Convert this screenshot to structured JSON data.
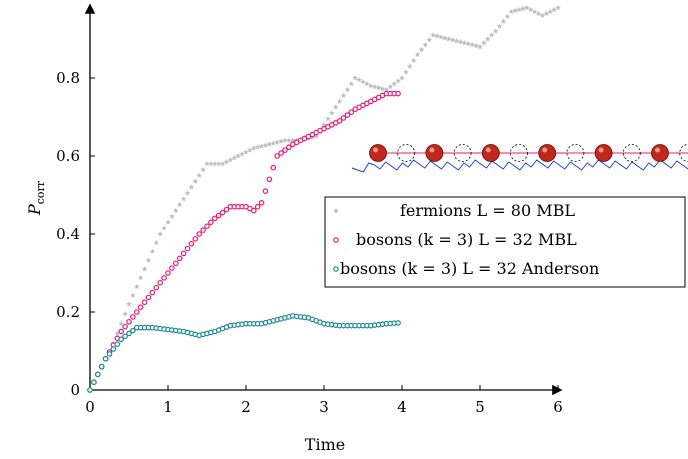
{
  "chart_data": {
    "type": "scatter",
    "xlabel": "Time",
    "ylabel": "P",
    "ylabel_sub": "corr",
    "xlim": [
      0,
      6
    ],
    "ylim": [
      0,
      1
    ],
    "xticks": [
      "0",
      "1",
      "2",
      "3",
      "4",
      "5",
      "6"
    ],
    "yticks": [
      "0",
      "0.2",
      "0.4",
      "0.6",
      "0.8"
    ],
    "grid": false,
    "legend_position": "right",
    "series": [
      {
        "name": "fermions L = 80 MBL",
        "color": "#bdbdbd",
        "marker": "star",
        "x": [
          0,
          0.3,
          0.5,
          0.7,
          0.9,
          1.1,
          1.3,
          1.5,
          1.7,
          1.9,
          2.1,
          2.3,
          2.5,
          2.7,
          2.9,
          3.0,
          3.2,
          3.4,
          3.6,
          3.8,
          4.0,
          4.2,
          4.4,
          4.6,
          4.8,
          5.0,
          5.2,
          5.4,
          5.6,
          5.8,
          6.0
        ],
        "y": [
          0,
          0.12,
          0.22,
          0.31,
          0.4,
          0.46,
          0.52,
          0.58,
          0.58,
          0.6,
          0.62,
          0.63,
          0.64,
          0.64,
          0.65,
          0.68,
          0.74,
          0.8,
          0.78,
          0.77,
          0.8,
          0.86,
          0.91,
          0.9,
          0.89,
          0.88,
          0.92,
          0.97,
          0.98,
          0.96,
          0.98
        ]
      },
      {
        "name": "bosons (k = 3) L = 32 MBL",
        "color": "#e8197a",
        "marker": "circle",
        "x": [
          0,
          0.2,
          0.4,
          0.6,
          0.8,
          1.0,
          1.2,
          1.4,
          1.6,
          1.8,
          2.0,
          2.1,
          2.2,
          2.3,
          2.4,
          2.6,
          2.8,
          3.0,
          3.2,
          3.4,
          3.6,
          3.8,
          3.95
        ],
        "y": [
          0,
          0.08,
          0.15,
          0.2,
          0.25,
          0.3,
          0.35,
          0.4,
          0.44,
          0.47,
          0.47,
          0.46,
          0.48,
          0.54,
          0.6,
          0.63,
          0.65,
          0.67,
          0.69,
          0.72,
          0.74,
          0.76,
          0.76
        ]
      },
      {
        "name": "bosons (k = 3) L = 32 Anderson",
        "color": "#1a8a93",
        "marker": "circle",
        "x": [
          0,
          0.2,
          0.4,
          0.6,
          0.8,
          1.0,
          1.2,
          1.4,
          1.6,
          1.8,
          2.0,
          2.2,
          2.4,
          2.6,
          2.8,
          3.0,
          3.2,
          3.4,
          3.6,
          3.8,
          3.95
        ],
        "y": [
          0,
          0.08,
          0.13,
          0.16,
          0.16,
          0.155,
          0.15,
          0.14,
          0.15,
          0.165,
          0.17,
          0.17,
          0.18,
          0.19,
          0.185,
          0.17,
          0.165,
          0.165,
          0.165,
          0.17,
          0.172
        ]
      }
    ],
    "inset_colors": {
      "particle": "#c0281c",
      "bond": "#e8197a",
      "potential": "#1f3fe0"
    }
  }
}
